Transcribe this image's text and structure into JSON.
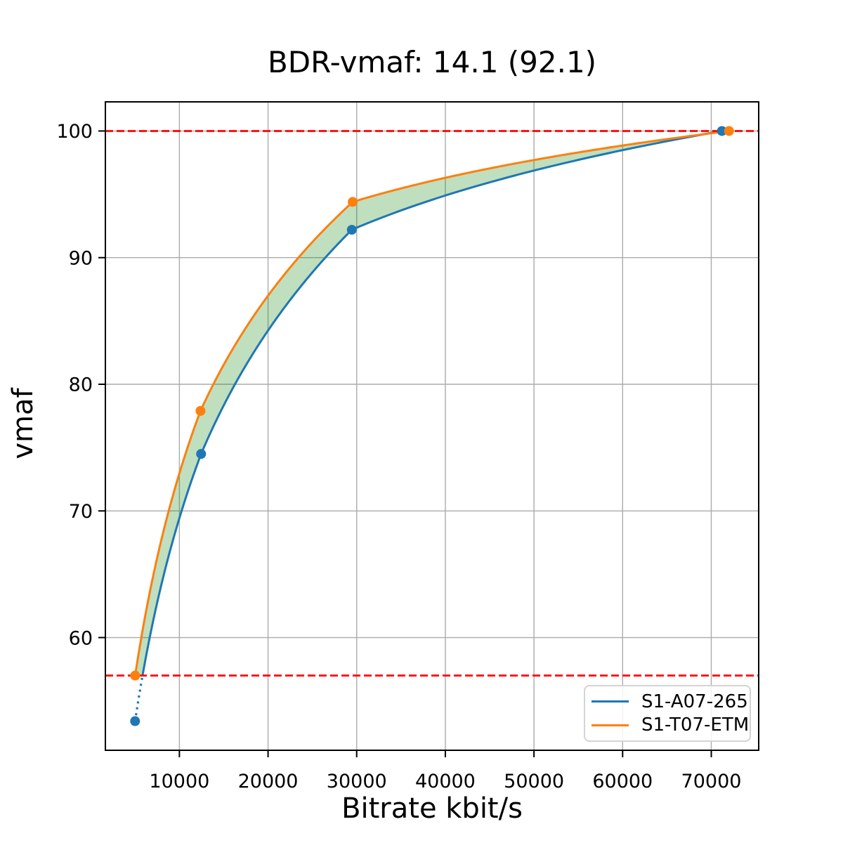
{
  "chart_data": {
    "type": "line",
    "title": "BDR-vmaf: 14.1 (92.1)",
    "xlabel": "Bitrate kbit/s",
    "ylabel": "vmaf",
    "xlim": [
      1650,
      75350
    ],
    "ylim": [
      51.1,
      102.3
    ],
    "x_ticks": [
      10000,
      20000,
      30000,
      40000,
      50000,
      60000,
      70000
    ],
    "y_ticks": [
      60,
      70,
      80,
      90,
      100
    ],
    "grid": true,
    "grid_color": "#ababab",
    "spine_color": "#000000",
    "interpolation": "linear-in-log-x",
    "legend_position": "lower right",
    "series": [
      {
        "name": "S1-A07-265",
        "color": "#1f77b4",
        "points": [
          [
            5000,
            53.4
          ],
          [
            12450,
            74.5
          ],
          [
            29450,
            92.2
          ],
          [
            71200,
            100.0
          ]
        ],
        "clip_below_vmaf": 57.0,
        "below_clip_style": "dotted"
      },
      {
        "name": "S1-T07-ETM",
        "color": "#ff7f0e",
        "points": [
          [
            5010,
            57.0
          ],
          [
            12380,
            77.9
          ],
          [
            29550,
            94.4
          ],
          [
            72000,
            100.0
          ]
        ]
      }
    ],
    "bd_interval_lines": {
      "color": "#ff0000",
      "style": "dashed",
      "upper_vmaf": 100.0,
      "lower_vmaf": 57.0
    },
    "fill_between_color": "rgba(0,128,0,0.25)"
  }
}
